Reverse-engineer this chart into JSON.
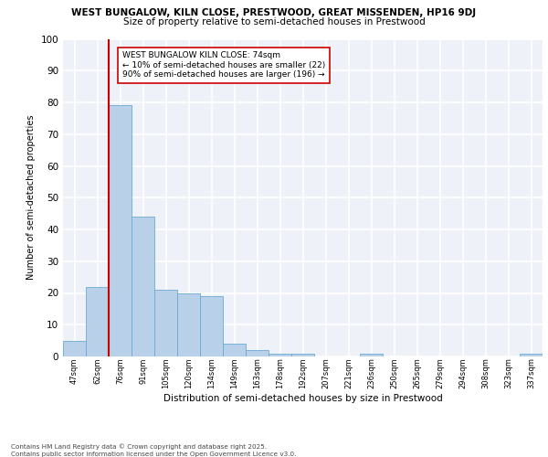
{
  "title_line1": "WEST BUNGALOW, KILN CLOSE, PRESTWOOD, GREAT MISSENDEN, HP16 9DJ",
  "title_line2": "Size of property relative to semi-detached houses in Prestwood",
  "xlabel": "Distribution of semi-detached houses by size in Prestwood",
  "ylabel": "Number of semi-detached properties",
  "categories": [
    "47sqm",
    "62sqm",
    "76sqm",
    "91sqm",
    "105sqm",
    "120sqm",
    "134sqm",
    "149sqm",
    "163sqm",
    "178sqm",
    "192sqm",
    "207sqm",
    "221sqm",
    "236sqm",
    "250sqm",
    "265sqm",
    "279sqm",
    "294sqm",
    "308sqm",
    "323sqm",
    "337sqm"
  ],
  "values": [
    5,
    22,
    79,
    44,
    21,
    20,
    19,
    4,
    2,
    1,
    1,
    0,
    0,
    1,
    0,
    0,
    0,
    0,
    0,
    0,
    1
  ],
  "bar_color": "#b8d0e8",
  "bar_edge_color": "#6aaad4",
  "vline_color": "#cc0000",
  "vline_index": 1.5,
  "annotation_text": "WEST BUNGALOW KILN CLOSE: 74sqm\n← 10% of semi-detached houses are smaller (22)\n90% of semi-detached houses are larger (196) →",
  "annotation_box_color": "#ffffff",
  "annotation_box_edge": "#cc0000",
  "ylim": [
    0,
    100
  ],
  "yticks": [
    0,
    10,
    20,
    30,
    40,
    50,
    60,
    70,
    80,
    90,
    100
  ],
  "footer_text": "Contains HM Land Registry data © Crown copyright and database right 2025.\nContains public sector information licensed under the Open Government Licence v3.0.",
  "bg_color": "#eef2f8",
  "grid_color": "#ffffff",
  "fig_width": 6.0,
  "fig_height": 5.0,
  "dpi": 100
}
